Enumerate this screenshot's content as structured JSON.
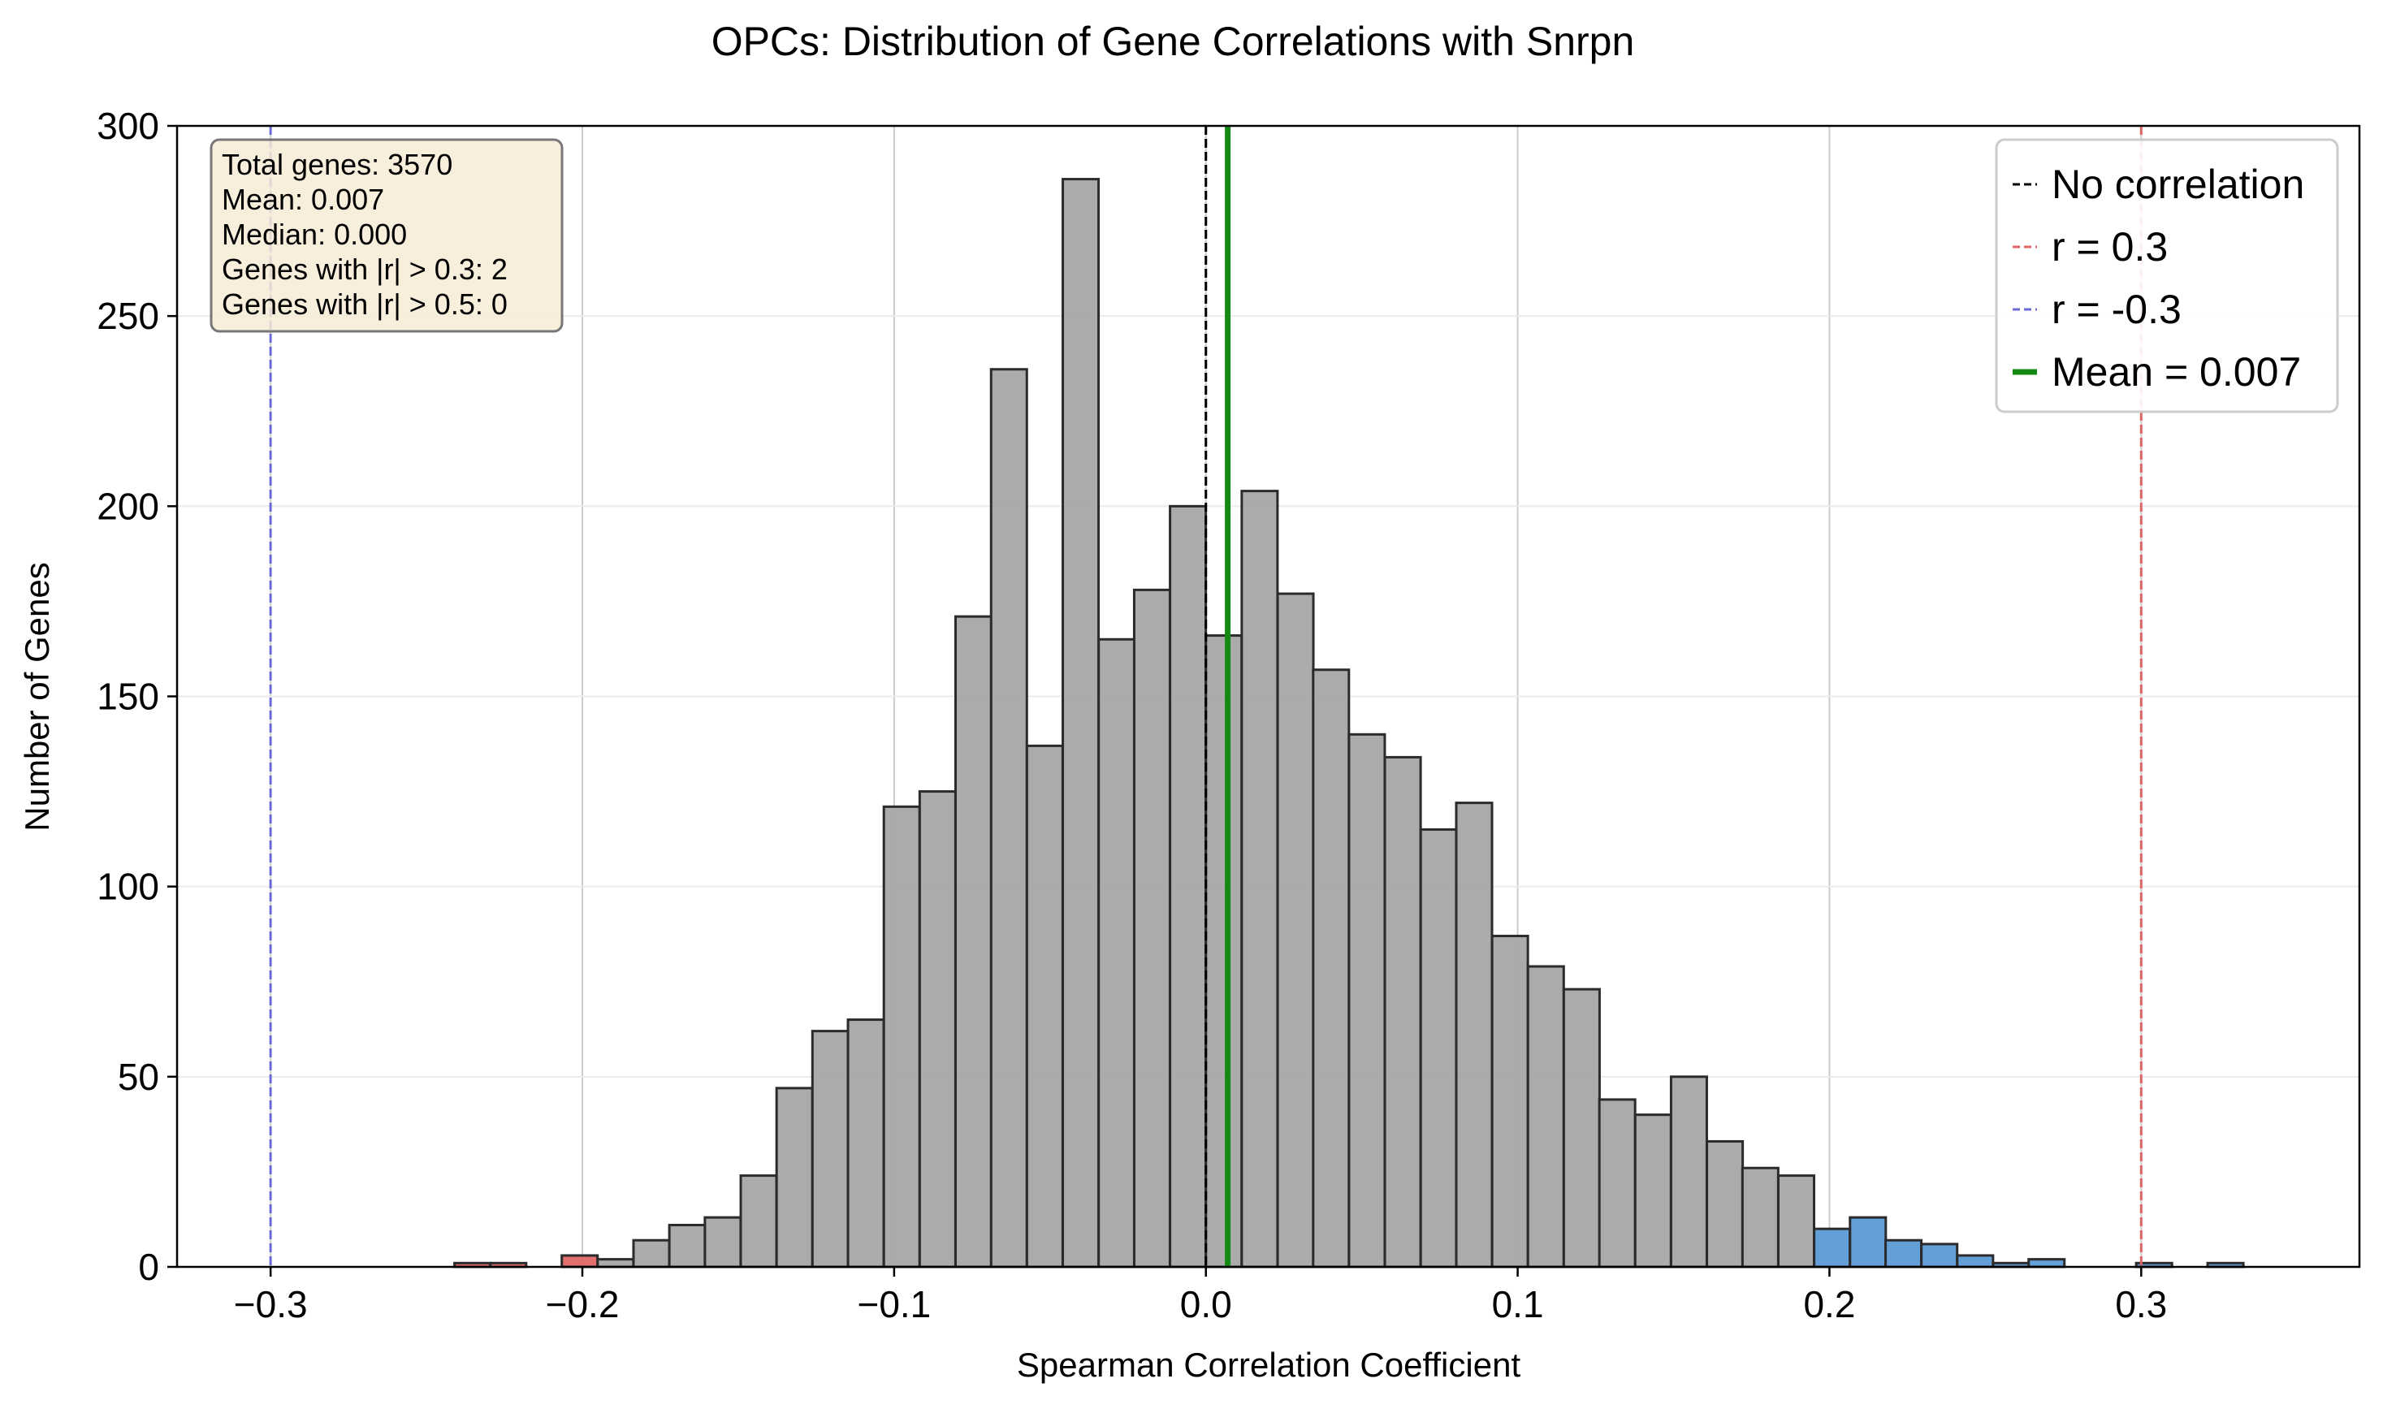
{
  "chart_data": {
    "type": "bar",
    "title": "OPCs: Distribution of Gene Correlations with Snrpn",
    "xlabel": "Spearman Correlation Coefficient",
    "ylabel": "Number of Genes",
    "xlim": [
      -0.33,
      0.37
    ],
    "ylim": [
      0,
      300
    ],
    "xticks": [
      -0.3,
      -0.2,
      -0.1,
      0.0,
      0.1,
      0.2,
      0.3
    ],
    "xtick_labels": [
      "−0.3",
      "−0.2",
      "−0.1",
      "0.0",
      "0.1",
      "0.2",
      "0.3"
    ],
    "yticks": [
      0,
      50,
      100,
      150,
      200,
      250,
      300
    ],
    "ytick_labels": [
      "0",
      "50",
      "100",
      "150",
      "200",
      "250",
      "300"
    ],
    "grid": true,
    "bin_width": 0.01147,
    "bins": [
      {
        "start": -0.241,
        "count": 1,
        "group": "neg"
      },
      {
        "start": -0.2295,
        "count": 1,
        "group": "neg"
      },
      {
        "start": -0.2066,
        "count": 3,
        "group": "neg"
      },
      {
        "start": -0.1951,
        "count": 2,
        "group": "mid"
      },
      {
        "start": -0.1836,
        "count": 7,
        "group": "mid"
      },
      {
        "start": -0.1721,
        "count": 11,
        "group": "mid"
      },
      {
        "start": -0.1607,
        "count": 13,
        "group": "mid"
      },
      {
        "start": -0.1492,
        "count": 24,
        "group": "mid"
      },
      {
        "start": -0.1377,
        "count": 47,
        "group": "mid"
      },
      {
        "start": -0.1262,
        "count": 62,
        "group": "mid"
      },
      {
        "start": -0.1148,
        "count": 65,
        "group": "mid"
      },
      {
        "start": -0.1033,
        "count": 121,
        "group": "mid"
      },
      {
        "start": -0.0918,
        "count": 125,
        "group": "mid"
      },
      {
        "start": -0.0803,
        "count": 171,
        "group": "mid"
      },
      {
        "start": -0.0689,
        "count": 236,
        "group": "mid"
      },
      {
        "start": -0.0574,
        "count": 137,
        "group": "mid"
      },
      {
        "start": -0.0459,
        "count": 286,
        "group": "mid"
      },
      {
        "start": -0.0344,
        "count": 165,
        "group": "mid"
      },
      {
        "start": -0.023,
        "count": 178,
        "group": "mid"
      },
      {
        "start": -0.0115,
        "count": 200,
        "group": "mid"
      },
      {
        "start": 0.0,
        "count": 166,
        "group": "mid"
      },
      {
        "start": 0.0115,
        "count": 204,
        "group": "mid"
      },
      {
        "start": 0.023,
        "count": 177,
        "group": "mid"
      },
      {
        "start": 0.0344,
        "count": 157,
        "group": "mid"
      },
      {
        "start": 0.0459,
        "count": 140,
        "group": "mid"
      },
      {
        "start": 0.0574,
        "count": 134,
        "group": "mid"
      },
      {
        "start": 0.0689,
        "count": 115,
        "group": "mid"
      },
      {
        "start": 0.0803,
        "count": 122,
        "group": "mid"
      },
      {
        "start": 0.0918,
        "count": 87,
        "group": "mid"
      },
      {
        "start": 0.1033,
        "count": 79,
        "group": "mid"
      },
      {
        "start": 0.1148,
        "count": 73,
        "group": "mid"
      },
      {
        "start": 0.1262,
        "count": 44,
        "group": "mid"
      },
      {
        "start": 0.1377,
        "count": 40,
        "group": "mid"
      },
      {
        "start": 0.1492,
        "count": 50,
        "group": "mid"
      },
      {
        "start": 0.1607,
        "count": 33,
        "group": "mid"
      },
      {
        "start": 0.1721,
        "count": 26,
        "group": "mid"
      },
      {
        "start": 0.1836,
        "count": 24,
        "group": "mid"
      },
      {
        "start": 0.1951,
        "count": 10,
        "group": "pos"
      },
      {
        "start": 0.2066,
        "count": 13,
        "group": "pos"
      },
      {
        "start": 0.218,
        "count": 7,
        "group": "pos"
      },
      {
        "start": 0.2295,
        "count": 6,
        "group": "pos"
      },
      {
        "start": 0.241,
        "count": 3,
        "group": "pos"
      },
      {
        "start": 0.2525,
        "count": 1,
        "group": "pos"
      },
      {
        "start": 0.2639,
        "count": 2,
        "group": "pos"
      },
      {
        "start": 0.2984,
        "count": 1,
        "group": "pos"
      },
      {
        "start": 0.3213,
        "count": 1,
        "group": "pos"
      }
    ],
    "bar_colors": {
      "neg": "#e06666",
      "mid": "#a6a6a6",
      "pos": "#5b9bd5"
    },
    "reference_lines": [
      {
        "x": 0.0,
        "color": "#000000",
        "style": "dashed",
        "label": "No correlation"
      },
      {
        "x": 0.3,
        "color": "#e06666",
        "style": "dashed",
        "label": "r = 0.3"
      },
      {
        "x": -0.3,
        "color": "#6b6bd6",
        "style": "dashed",
        "label": "r = -0.3"
      },
      {
        "x": 0.007,
        "color": "#138a13",
        "style": "solid",
        "label": "Mean = 0.007"
      }
    ],
    "legend_position": "top-right",
    "stats_box": {
      "position": "top-left",
      "lines": [
        "Total genes: 3570",
        "Mean: 0.007",
        "Median: 0.000",
        "Genes with |r| > 0.3: 2",
        "Genes with |r| > 0.5: 0"
      ]
    }
  }
}
